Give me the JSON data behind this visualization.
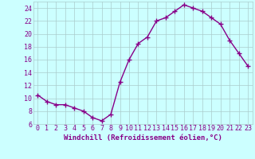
{
  "x": [
    0,
    1,
    2,
    3,
    4,
    5,
    6,
    7,
    8,
    9,
    10,
    11,
    12,
    13,
    14,
    15,
    16,
    17,
    18,
    19,
    20,
    21,
    22,
    23
  ],
  "y": [
    10.5,
    9.5,
    9.0,
    9.0,
    8.5,
    8.0,
    7.0,
    6.5,
    7.5,
    12.5,
    16.0,
    18.5,
    19.5,
    22.0,
    22.5,
    23.5,
    24.5,
    24.0,
    23.5,
    22.5,
    21.5,
    19.0,
    17.0,
    15.0
  ],
  "line_color": "#880088",
  "marker": "+",
  "marker_size": 4,
  "marker_linewidth": 1.0,
  "line_width": 1.0,
  "xlabel": "Windchill (Refroidissement éolien,°C)",
  "xlim_min": -0.5,
  "xlim_max": 23.5,
  "ylim_min": 6,
  "ylim_max": 25,
  "yticks": [
    6,
    8,
    10,
    12,
    14,
    16,
    18,
    20,
    22,
    24
  ],
  "xticks": [
    0,
    1,
    2,
    3,
    4,
    5,
    6,
    7,
    8,
    9,
    10,
    11,
    12,
    13,
    14,
    15,
    16,
    17,
    18,
    19,
    20,
    21,
    22,
    23
  ],
  "background_color": "#ccffff",
  "grid_color": "#aacccc",
  "label_fontsize": 6.5,
  "tick_fontsize": 6.0
}
